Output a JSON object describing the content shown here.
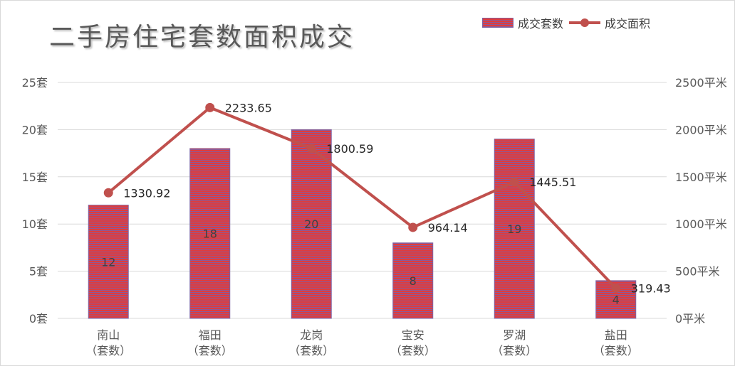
{
  "chart_data": {
    "type": "bar",
    "title": "二手房住宅套数面积成交",
    "categories": [
      "南山\n（套数）",
      "福田\n（套数）",
      "龙岗\n（套数）",
      "宝安\n（套数）",
      "罗湖\n（套数）",
      "盐田\n（套数）"
    ],
    "series": [
      {
        "name": "成交套数",
        "type": "bar",
        "axis": "left",
        "values": [
          12,
          18,
          20,
          8,
          19,
          4
        ],
        "labels": [
          "12",
          "18",
          "20",
          "8",
          "19",
          "4"
        ]
      },
      {
        "name": "成交面积",
        "type": "line",
        "axis": "right",
        "values": [
          1330.92,
          2233.65,
          1800.59,
          964.14,
          1445.51,
          319.43
        ],
        "labels": [
          "1330.92",
          "2233.65",
          "1800.59",
          "964.14",
          "1445.51",
          "319.43"
        ]
      }
    ],
    "y_left": {
      "ylim": [
        0,
        25
      ],
      "ticks": [
        0,
        5,
        10,
        15,
        20,
        25
      ],
      "tick_labels": [
        "0套",
        "5套",
        "10套",
        "15套",
        "20套",
        "25套"
      ]
    },
    "y_right": {
      "ylim": [
        0,
        2500
      ],
      "ticks": [
        0,
        500,
        1000,
        1500,
        2000,
        2500
      ],
      "tick_labels": [
        "0平米",
        "500平米",
        "1000平米",
        "1500平米",
        "2000平米",
        "2500平米"
      ]
    },
    "grid": true,
    "legend_position": "top-right",
    "colors": {
      "bar": "#e03c3c",
      "bar_stripe": "#8a5a9a",
      "bar_border": "#8064a2",
      "line": "#c0504d",
      "grid": "#d9d9d9",
      "text": "#595959"
    }
  }
}
